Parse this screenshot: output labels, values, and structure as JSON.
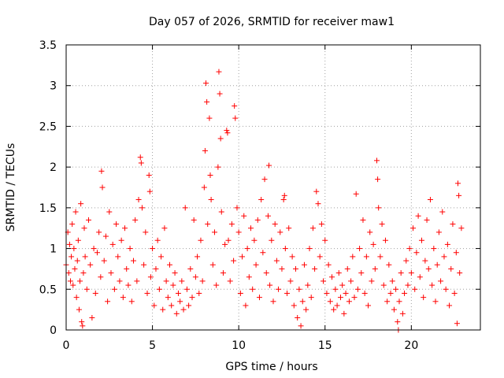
{
  "chart_data": {
    "type": "scatter",
    "title": "Day 057 of 2026, SRMTID for receiver maw1",
    "xlabel": "GPS time / hours",
    "ylabel": "SRMTID / TECUs",
    "xlim": [
      0,
      24
    ],
    "ylim": [
      0,
      3.5
    ],
    "x_ticks": [
      0,
      5,
      10,
      15,
      20
    ],
    "x_tick_labels": [
      "0",
      "5",
      "10",
      "15",
      "20"
    ],
    "y_ticks": [
      0,
      0.5,
      1,
      1.5,
      2,
      2.5,
      3,
      3.5
    ],
    "y_tick_labels": [
      "0",
      "0.5",
      "1",
      "1.5",
      "2",
      "2.5",
      "3",
      "3.5"
    ],
    "grid": true,
    "marker": "+",
    "marker_color": "#ff0000",
    "series": [
      {
        "name": "SRMTID",
        "points": [
          [
            0.0,
            0.8
          ],
          [
            0.1,
            1.2
          ],
          [
            0.15,
            0.7
          ],
          [
            0.2,
            1.05
          ],
          [
            0.25,
            0.6
          ],
          [
            0.3,
            0.9
          ],
          [
            0.35,
            1.3
          ],
          [
            0.4,
            0.55
          ],
          [
            0.45,
            1.0
          ],
          [
            0.5,
            0.75
          ],
          [
            0.55,
            1.45
          ],
          [
            0.6,
            0.4
          ],
          [
            0.65,
            0.85
          ],
          [
            0.7,
            1.1
          ],
          [
            0.75,
            0.25
          ],
          [
            0.8,
            0.6
          ],
          [
            0.85,
            1.55
          ],
          [
            0.9,
            0.1
          ],
          [
            0.95,
            0.05
          ],
          [
            1.0,
            0.7
          ],
          [
            1.05,
            1.25
          ],
          [
            1.1,
            0.9
          ],
          [
            1.2,
            0.5
          ],
          [
            1.3,
            1.35
          ],
          [
            1.4,
            0.8
          ],
          [
            1.5,
            0.15
          ],
          [
            1.6,
            1.0
          ],
          [
            1.7,
            0.45
          ],
          [
            1.8,
            0.95
          ],
          [
            1.9,
            1.2
          ],
          [
            2.0,
            0.65
          ],
          [
            2.05,
            1.95
          ],
          [
            2.1,
            1.75
          ],
          [
            2.2,
            0.85
          ],
          [
            2.3,
            1.15
          ],
          [
            2.4,
            0.35
          ],
          [
            2.5,
            1.45
          ],
          [
            2.6,
            0.7
          ],
          [
            2.7,
            1.05
          ],
          [
            2.8,
            0.5
          ],
          [
            2.9,
            1.3
          ],
          [
            3.0,
            0.9
          ],
          [
            3.1,
            0.6
          ],
          [
            3.2,
            1.1
          ],
          [
            3.3,
            0.4
          ],
          [
            3.4,
            1.25
          ],
          [
            3.5,
            0.75
          ],
          [
            3.6,
            0.55
          ],
          [
            3.7,
            1.0
          ],
          [
            3.8,
            0.35
          ],
          [
            3.9,
            0.85
          ],
          [
            4.0,
            1.35
          ],
          [
            4.1,
            0.6
          ],
          [
            4.2,
            1.6
          ],
          [
            4.3,
            2.12
          ],
          [
            4.35,
            2.05
          ],
          [
            4.4,
            1.5
          ],
          [
            4.5,
            0.8
          ],
          [
            4.6,
            1.2
          ],
          [
            4.7,
            0.45
          ],
          [
            4.8,
            1.9
          ],
          [
            4.85,
            1.7
          ],
          [
            4.9,
            0.65
          ],
          [
            5.0,
            1.0
          ],
          [
            5.1,
            0.3
          ],
          [
            5.2,
            0.75
          ],
          [
            5.3,
            1.1
          ],
          [
            5.4,
            0.5
          ],
          [
            5.5,
            0.9
          ],
          [
            5.6,
            0.25
          ],
          [
            5.7,
            1.25
          ],
          [
            5.8,
            0.6
          ],
          [
            5.9,
            0.4
          ],
          [
            6.0,
            0.8
          ],
          [
            6.1,
            0.3
          ],
          [
            6.2,
            0.55
          ],
          [
            6.3,
            0.7
          ],
          [
            6.4,
            0.2
          ],
          [
            6.5,
            0.45
          ],
          [
            6.6,
            0.35
          ],
          [
            6.7,
            0.6
          ],
          [
            6.8,
            0.25
          ],
          [
            6.9,
            1.5
          ],
          [
            7.0,
            0.5
          ],
          [
            7.1,
            0.3
          ],
          [
            7.2,
            0.75
          ],
          [
            7.3,
            0.4
          ],
          [
            7.4,
            1.35
          ],
          [
            7.5,
            0.65
          ],
          [
            7.6,
            0.9
          ],
          [
            7.7,
            0.45
          ],
          [
            7.8,
            1.1
          ],
          [
            7.9,
            0.6
          ],
          [
            8.0,
            1.75
          ],
          [
            8.05,
            2.2
          ],
          [
            8.1,
            3.03
          ],
          [
            8.15,
            2.8
          ],
          [
            8.2,
            1.3
          ],
          [
            8.3,
            2.6
          ],
          [
            8.35,
            1.9
          ],
          [
            8.4,
            1.6
          ],
          [
            8.5,
            0.8
          ],
          [
            8.6,
            1.2
          ],
          [
            8.7,
            0.55
          ],
          [
            8.8,
            2.0
          ],
          [
            8.85,
            3.17
          ],
          [
            8.9,
            2.9
          ],
          [
            8.95,
            2.35
          ],
          [
            9.0,
            1.45
          ],
          [
            9.1,
            0.7
          ],
          [
            9.2,
            1.05
          ],
          [
            9.3,
            2.45
          ],
          [
            9.35,
            2.42
          ],
          [
            9.4,
            1.1
          ],
          [
            9.5,
            0.6
          ],
          [
            9.6,
            1.3
          ],
          [
            9.7,
            0.85
          ],
          [
            9.75,
            2.75
          ],
          [
            9.8,
            2.6
          ],
          [
            9.9,
            1.5
          ],
          [
            10.0,
            1.2
          ],
          [
            10.1,
            0.45
          ],
          [
            10.2,
            0.9
          ],
          [
            10.3,
            1.4
          ],
          [
            10.4,
            0.3
          ],
          [
            10.5,
            1.0
          ],
          [
            10.6,
            0.65
          ],
          [
            10.7,
            1.25
          ],
          [
            10.8,
            0.5
          ],
          [
            10.9,
            1.1
          ],
          [
            11.0,
            0.8
          ],
          [
            11.1,
            1.35
          ],
          [
            11.2,
            0.4
          ],
          [
            11.3,
            1.6
          ],
          [
            11.4,
            0.95
          ],
          [
            11.5,
            1.85
          ],
          [
            11.6,
            0.7
          ],
          [
            11.7,
            1.4
          ],
          [
            11.75,
            2.02
          ],
          [
            11.8,
            0.55
          ],
          [
            11.9,
            1.1
          ],
          [
            12.0,
            0.35
          ],
          [
            12.1,
            1.3
          ],
          [
            12.2,
            0.85
          ],
          [
            12.3,
            0.5
          ],
          [
            12.4,
            1.2
          ],
          [
            12.5,
            0.75
          ],
          [
            12.6,
            1.6
          ],
          [
            12.65,
            1.65
          ],
          [
            12.7,
            1.0
          ],
          [
            12.8,
            0.45
          ],
          [
            12.9,
            1.25
          ],
          [
            13.0,
            0.6
          ],
          [
            13.1,
            0.9
          ],
          [
            13.2,
            0.3
          ],
          [
            13.3,
            0.75
          ],
          [
            13.4,
            0.15
          ],
          [
            13.5,
            0.5
          ],
          [
            13.6,
            0.05
          ],
          [
            13.7,
            0.35
          ],
          [
            13.8,
            0.8
          ],
          [
            13.9,
            0.25
          ],
          [
            14.0,
            0.55
          ],
          [
            14.1,
            1.0
          ],
          [
            14.2,
            0.4
          ],
          [
            14.3,
            1.25
          ],
          [
            14.4,
            0.75
          ],
          [
            14.5,
            1.7
          ],
          [
            14.6,
            1.55
          ],
          [
            14.7,
            0.9
          ],
          [
            14.8,
            1.3
          ],
          [
            14.9,
            0.6
          ],
          [
            15.0,
            1.1
          ],
          [
            15.1,
            0.45
          ],
          [
            15.2,
            0.8
          ],
          [
            15.3,
            0.35
          ],
          [
            15.4,
            0.65
          ],
          [
            15.5,
            0.25
          ],
          [
            15.6,
            0.5
          ],
          [
            15.7,
            0.3
          ],
          [
            15.8,
            0.7
          ],
          [
            15.9,
            0.4
          ],
          [
            16.0,
            0.55
          ],
          [
            16.1,
            0.2
          ],
          [
            16.2,
            0.45
          ],
          [
            16.3,
            0.75
          ],
          [
            16.4,
            0.35
          ],
          [
            16.5,
            0.6
          ],
          [
            16.6,
            0.9
          ],
          [
            16.7,
            0.4
          ],
          [
            16.8,
            1.67
          ],
          [
            16.9,
            0.5
          ],
          [
            17.0,
            1.0
          ],
          [
            17.1,
            0.7
          ],
          [
            17.2,
            1.35
          ],
          [
            17.3,
            0.45
          ],
          [
            17.4,
            0.9
          ],
          [
            17.5,
            0.3
          ],
          [
            17.6,
            1.2
          ],
          [
            17.7,
            0.6
          ],
          [
            17.8,
            1.05
          ],
          [
            17.9,
            0.75
          ],
          [
            18.0,
            2.08
          ],
          [
            18.05,
            1.85
          ],
          [
            18.1,
            1.5
          ],
          [
            18.2,
            0.9
          ],
          [
            18.3,
            1.3
          ],
          [
            18.4,
            0.55
          ],
          [
            18.5,
            1.1
          ],
          [
            18.6,
            0.35
          ],
          [
            18.7,
            0.8
          ],
          [
            18.8,
            0.45
          ],
          [
            18.9,
            0.6
          ],
          [
            19.0,
            0.25
          ],
          [
            19.1,
            0.5
          ],
          [
            19.2,
            0.1
          ],
          [
            19.25,
            0.0
          ],
          [
            19.3,
            0.35
          ],
          [
            19.4,
            0.7
          ],
          [
            19.5,
            0.2
          ],
          [
            19.6,
            0.45
          ],
          [
            19.7,
            0.85
          ],
          [
            19.8,
            0.55
          ],
          [
            19.9,
            1.0
          ],
          [
            20.0,
            0.7
          ],
          [
            20.1,
            1.25
          ],
          [
            20.2,
            0.5
          ],
          [
            20.3,
            0.95
          ],
          [
            20.4,
            1.4
          ],
          [
            20.5,
            0.65
          ],
          [
            20.6,
            1.1
          ],
          [
            20.7,
            0.4
          ],
          [
            20.8,
            0.85
          ],
          [
            20.9,
            1.35
          ],
          [
            21.0,
            0.75
          ],
          [
            21.1,
            1.6
          ],
          [
            21.2,
            0.55
          ],
          [
            21.3,
            1.0
          ],
          [
            21.4,
            0.35
          ],
          [
            21.5,
            0.8
          ],
          [
            21.6,
            1.2
          ],
          [
            21.7,
            0.6
          ],
          [
            21.8,
            1.45
          ],
          [
            21.9,
            0.9
          ],
          [
            22.0,
            0.5
          ],
          [
            22.1,
            1.05
          ],
          [
            22.2,
            0.3
          ],
          [
            22.3,
            0.75
          ],
          [
            22.4,
            1.3
          ],
          [
            22.5,
            0.45
          ],
          [
            22.6,
            0.95
          ],
          [
            22.65,
            0.08
          ],
          [
            22.7,
            1.8
          ],
          [
            22.75,
            1.65
          ],
          [
            22.8,
            0.7
          ],
          [
            22.9,
            1.25
          ]
        ]
      }
    ]
  }
}
